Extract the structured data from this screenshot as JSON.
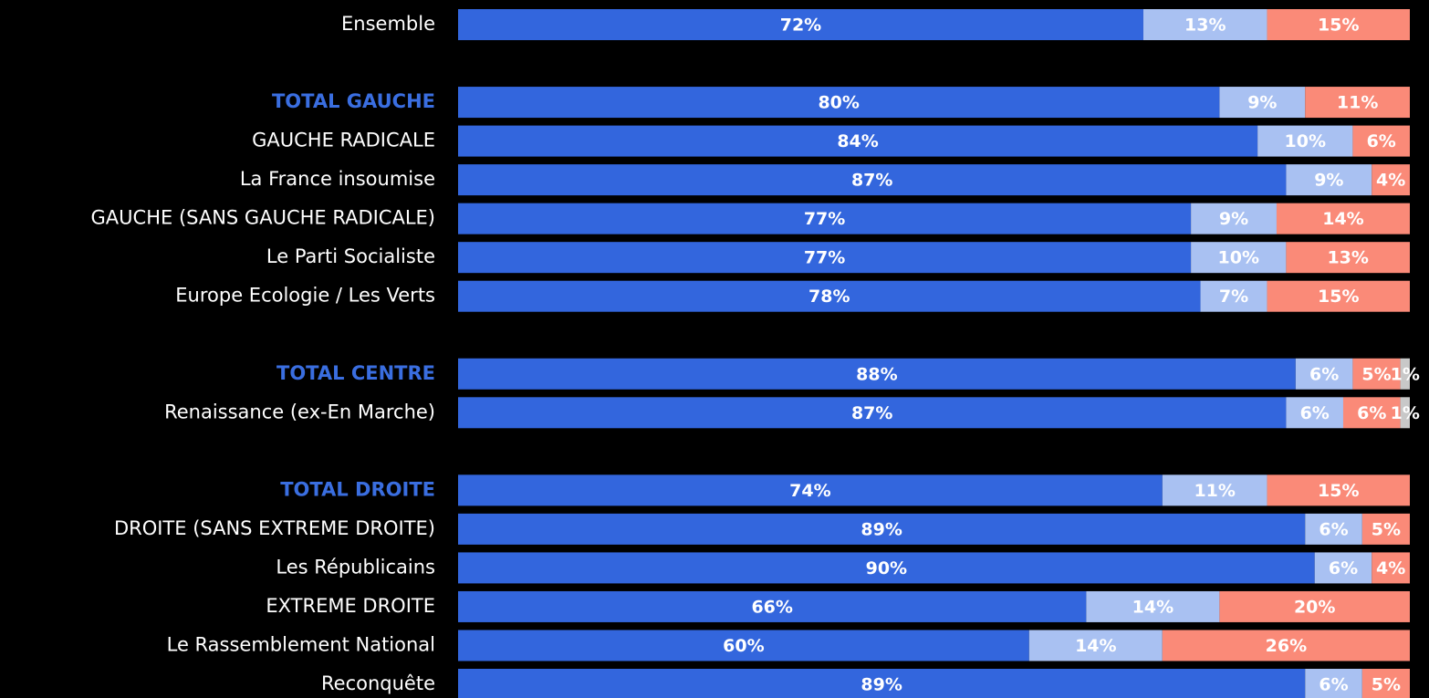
{
  "chart_data": {
    "type": "stacked_bar_horizontal",
    "categories": [
      "Ensemble",
      null,
      "TOTAL GAUCHE",
      "GAUCHE RADICALE",
      "La France insoumise",
      "GAUCHE (SANS GAUCHE RADICALE)",
      "Le Parti Socialiste",
      "Europe Ecologie / Les Verts",
      null,
      "TOTAL CENTRE",
      "Renaissance (ex-En Marche)",
      null,
      "TOTAL DROITE",
      "DROITE (SANS EXTREME DROITE)",
      "Les Républicains",
      "EXTREME DROITE",
      "Le Rassemblement National",
      "Reconquête"
    ],
    "highlight_rows": [
      2,
      9,
      12
    ],
    "highlight_color": "#3a6ee0",
    "label_color": "#ffffff",
    "series": [
      {
        "color": "#3366dd",
        "values": [
          72,
          null,
          80,
          84,
          87,
          77,
          77,
          78,
          null,
          88,
          87,
          null,
          74,
          89,
          90,
          66,
          60,
          89
        ],
        "value_labels": [
          "72%",
          null,
          "80%",
          "84%",
          "87%",
          "77%",
          "77%",
          "78%",
          null,
          "88%",
          "87%",
          null,
          "74%",
          "89%",
          "90%",
          "66%",
          "60%",
          "89%"
        ]
      },
      {
        "color": "#a9c1f2",
        "values": [
          13,
          null,
          9,
          10,
          9,
          9,
          10,
          7,
          null,
          6,
          6,
          null,
          11,
          6,
          6,
          14,
          14,
          6
        ],
        "value_labels": [
          "13%",
          null,
          "9%",
          "10%",
          "9%",
          "9%",
          "10%",
          "7%",
          null,
          "6%",
          "6%",
          null,
          "11%",
          "6%",
          "6%",
          "14%",
          "14%",
          "6%"
        ]
      },
      {
        "color": "#fa8a78",
        "values": [
          15,
          null,
          11,
          6,
          4,
          14,
          13,
          15,
          null,
          5,
          6,
          null,
          15,
          5,
          4,
          20,
          26,
          5
        ],
        "value_labels": [
          "15%",
          null,
          "11%",
          "6%",
          "4%",
          "14%",
          "13%",
          "15%",
          null,
          "5%",
          "6%",
          null,
          "15%",
          "5%",
          "4%",
          "20%",
          "26%",
          "5%"
        ]
      },
      {
        "color": "#c8c8c8",
        "values": [
          null,
          null,
          null,
          null,
          null,
          null,
          null,
          null,
          null,
          1,
          1,
          null,
          null,
          null,
          null,
          null,
          null,
          null
        ],
        "value_labels": [
          null,
          null,
          null,
          null,
          null,
          null,
          null,
          null,
          null,
          "1%",
          "1%",
          null,
          null,
          null,
          null,
          null,
          null,
          null
        ]
      }
    ]
  }
}
